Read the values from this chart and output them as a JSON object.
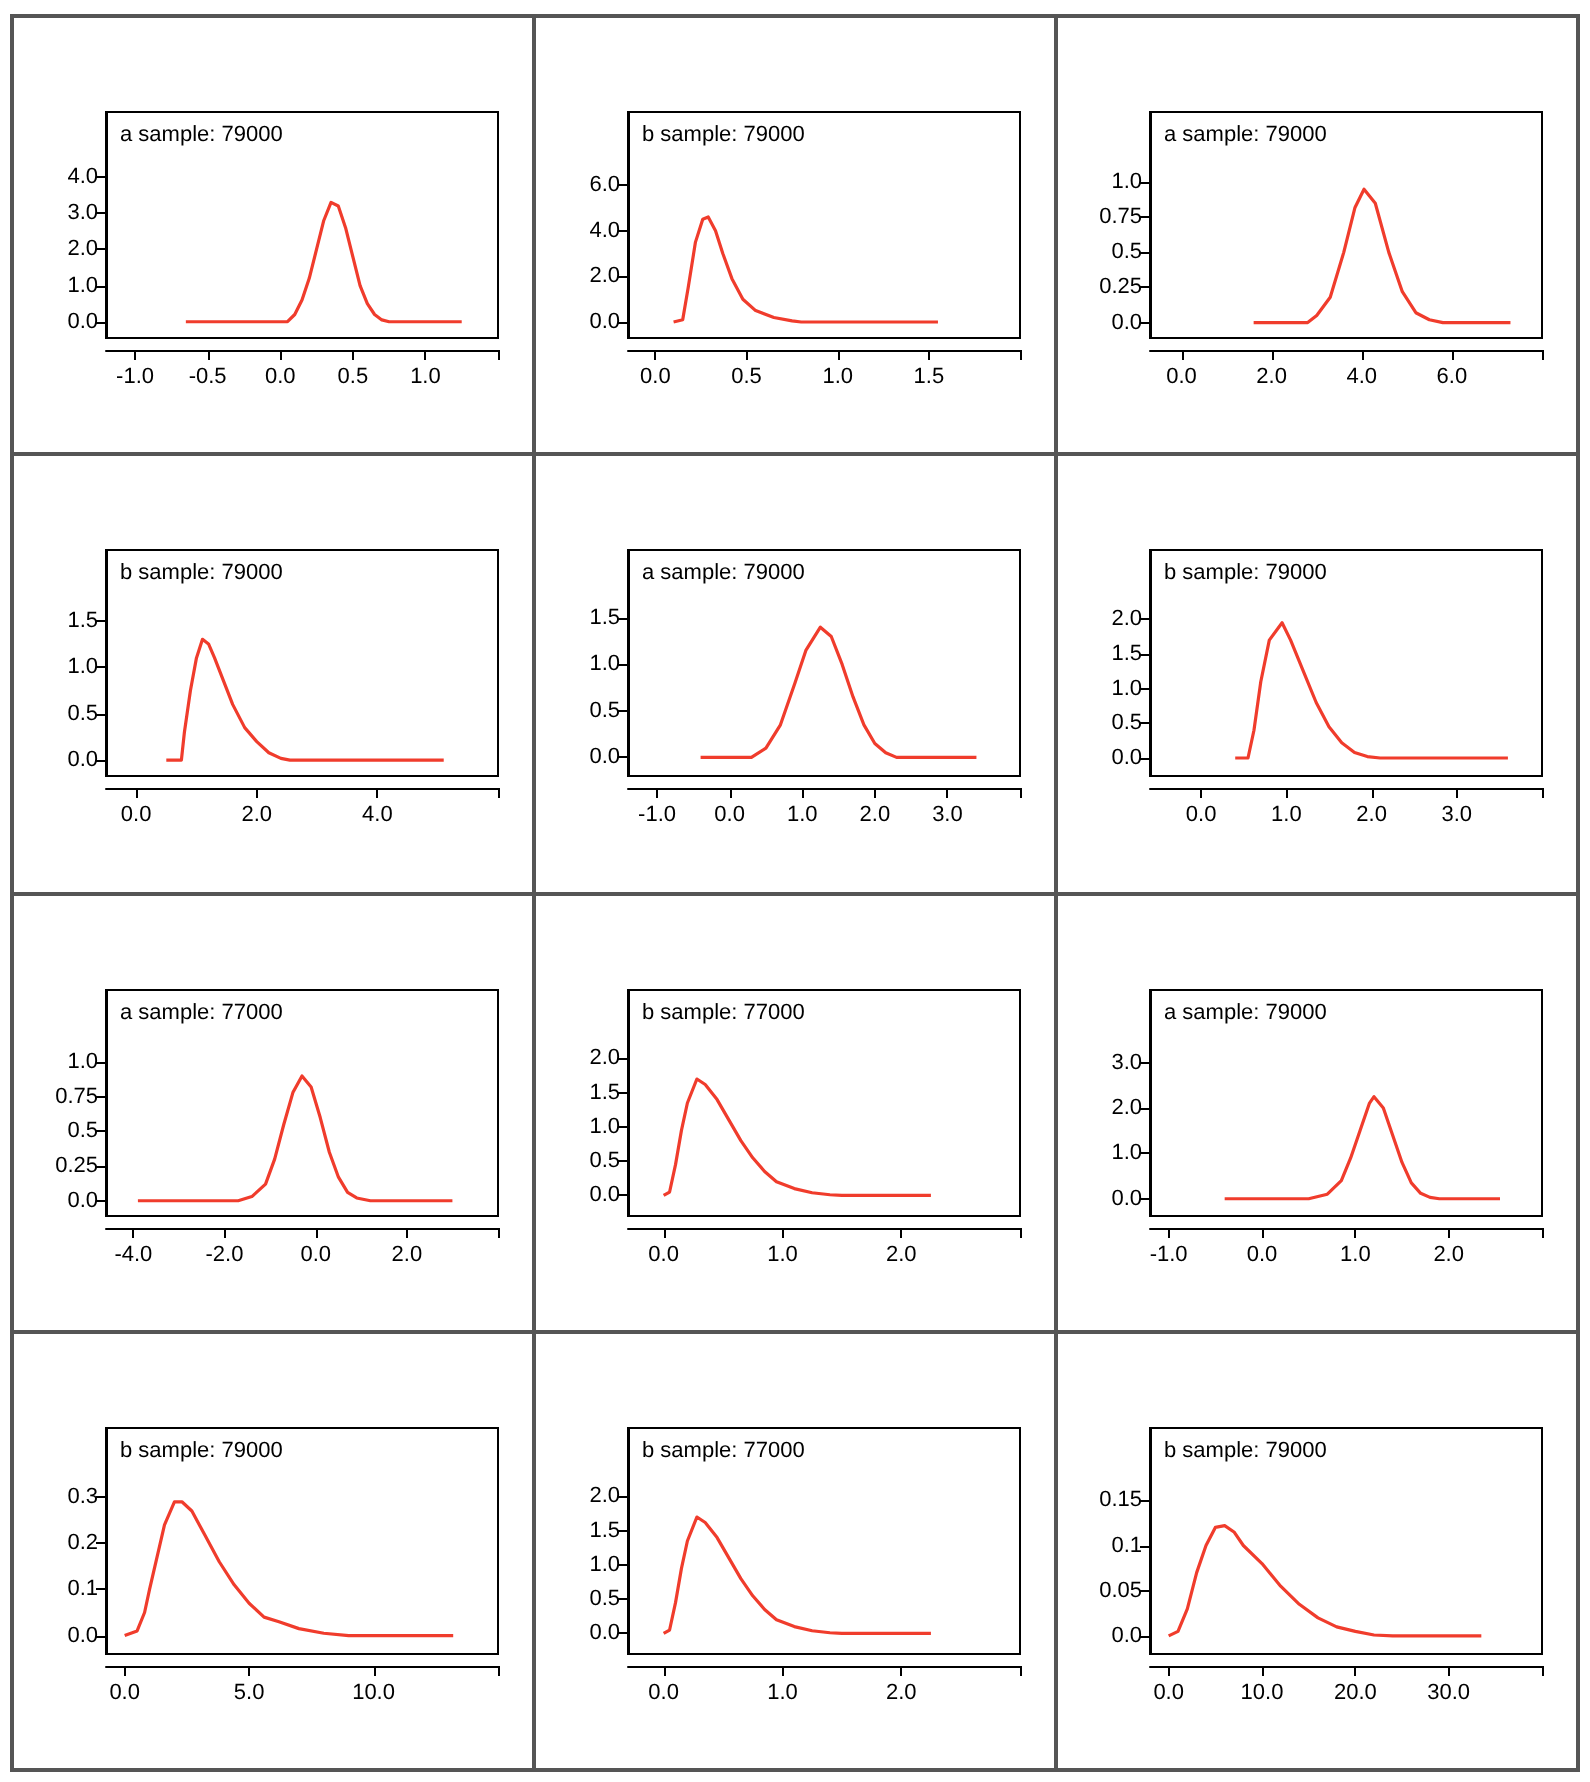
{
  "chart_data": [
    {
      "type": "line",
      "title": "a sample: 79000",
      "color": "#f03c2c",
      "xlim": [
        -1.2,
        1.5
      ],
      "ylim": [
        -0.45,
        5.8
      ],
      "xticks": [
        {
          "value": -1,
          "label": "-1.0"
        },
        {
          "value": -0.5,
          "label": "-0.5"
        },
        {
          "value": 0,
          "label": "0.0"
        },
        {
          "value": 0.5,
          "label": "0.5"
        },
        {
          "value": 1,
          "label": "1.0"
        },
        {
          "value": 1.5,
          "label": null
        }
      ],
      "yticks": [
        {
          "value": 0,
          "label": "0.0"
        },
        {
          "value": 1,
          "label": "1.0"
        },
        {
          "value": 2,
          "label": "2.0"
        },
        {
          "value": 3,
          "label": "3.0"
        },
        {
          "value": 4,
          "label": "4.0"
        }
      ],
      "x": [
        -0.65,
        0.05,
        0.1,
        0.15,
        0.2,
        0.25,
        0.3,
        0.35,
        0.4,
        0.45,
        0.5,
        0.55,
        0.6,
        0.65,
        0.7,
        0.75,
        1.25
      ],
      "values": [
        0,
        0,
        0.2,
        0.6,
        1.2,
        2.0,
        2.8,
        3.3,
        3.2,
        2.6,
        1.8,
        1.0,
        0.5,
        0.2,
        0.05,
        0,
        0
      ]
    },
    {
      "type": "line",
      "title": "b sample: 79000",
      "color": "#f03c2c",
      "xlim": [
        -0.15,
        2.0
      ],
      "ylim": [
        -0.7,
        9.2
      ],
      "xticks": [
        {
          "value": 0,
          "label": "0.0"
        },
        {
          "value": 0.5,
          "label": "0.5"
        },
        {
          "value": 1,
          "label": "1.0"
        },
        {
          "value": 1.5,
          "label": "1.5"
        },
        {
          "value": 2,
          "label": null
        }
      ],
      "yticks": [
        {
          "value": 0,
          "label": "0.0"
        },
        {
          "value": 2,
          "label": "2.0"
        },
        {
          "value": 4,
          "label": "4.0"
        },
        {
          "value": 6,
          "label": "6.0"
        }
      ],
      "x": [
        0.1,
        0.15,
        0.18,
        0.22,
        0.26,
        0.29,
        0.33,
        0.37,
        0.42,
        0.48,
        0.55,
        0.65,
        0.75,
        0.8,
        1.55
      ],
      "values": [
        0,
        0.1,
        1.5,
        3.5,
        4.5,
        4.6,
        4.0,
        3.0,
        1.9,
        1.0,
        0.5,
        0.2,
        0.05,
        0,
        0
      ]
    },
    {
      "type": "line",
      "title": "a sample: 79000",
      "color": "#f03c2c",
      "xlim": [
        -0.7,
        8.0
      ],
      "ylim": [
        -0.11,
        1.5
      ],
      "xticks": [
        {
          "value": 0,
          "label": "0.0"
        },
        {
          "value": 2,
          "label": "2.0"
        },
        {
          "value": 4,
          "label": "4.0"
        },
        {
          "value": 6,
          "label": "6.0"
        },
        {
          "value": 8,
          "label": null
        }
      ],
      "yticks": [
        {
          "value": 0,
          "label": "0.0"
        },
        {
          "value": 0.25,
          "label": "0.25"
        },
        {
          "value": 0.5,
          "label": "0.5"
        },
        {
          "value": 0.75,
          "label": "0.75"
        },
        {
          "value": 1,
          "label": "1.0"
        }
      ],
      "x": [
        1.6,
        2.8,
        3.0,
        3.3,
        3.6,
        3.85,
        4.05,
        4.3,
        4.6,
        4.9,
        5.2,
        5.5,
        5.8,
        7.3
      ],
      "values": [
        0,
        0,
        0.05,
        0.18,
        0.5,
        0.82,
        0.95,
        0.85,
        0.5,
        0.22,
        0.07,
        0.02,
        0,
        0
      ]
    },
    {
      "type": "line",
      "title": "b sample: 79000",
      "color": "#f03c2c",
      "xlim": [
        -0.5,
        6.0
      ],
      "ylim": [
        -0.17,
        2.26
      ],
      "xticks": [
        {
          "value": 0,
          "label": "0.0"
        },
        {
          "value": 2,
          "label": "2.0"
        },
        {
          "value": 4,
          "label": "4.0"
        },
        {
          "value": 6,
          "label": null
        }
      ],
      "yticks": [
        {
          "value": 0,
          "label": "0.0"
        },
        {
          "value": 0.5,
          "label": "0.5"
        },
        {
          "value": 1,
          "label": "1.0"
        },
        {
          "value": 1.5,
          "label": "1.5"
        }
      ],
      "x": [
        0.5,
        0.75,
        0.8,
        0.9,
        1.0,
        1.1,
        1.2,
        1.3,
        1.45,
        1.6,
        1.8,
        2.0,
        2.2,
        2.4,
        2.55,
        5.1
      ],
      "values": [
        0,
        0,
        0.3,
        0.75,
        1.1,
        1.3,
        1.25,
        1.1,
        0.85,
        0.6,
        0.35,
        0.2,
        0.08,
        0.02,
        0,
        0
      ]
    },
    {
      "type": "line",
      "title": "a sample: 79000",
      "color": "#f03c2c",
      "xlim": [
        -1.4,
        4.0
      ],
      "ylim": [
        -0.2,
        2.23
      ],
      "xticks": [
        {
          "value": -1,
          "label": "-1.0"
        },
        {
          "value": 0,
          "label": "0.0"
        },
        {
          "value": 1,
          "label": "1.0"
        },
        {
          "value": 2,
          "label": "2.0"
        },
        {
          "value": 3,
          "label": "3.0"
        },
        {
          "value": 4,
          "label": null
        }
      ],
      "yticks": [
        {
          "value": 0,
          "label": "0.0"
        },
        {
          "value": 0.5,
          "label": "0.5"
        },
        {
          "value": 1,
          "label": "1.0"
        },
        {
          "value": 1.5,
          "label": "1.5"
        }
      ],
      "x": [
        -0.4,
        0.3,
        0.5,
        0.7,
        0.9,
        1.05,
        1.25,
        1.4,
        1.55,
        1.7,
        1.85,
        2.0,
        2.15,
        2.3,
        3.4
      ],
      "values": [
        0,
        0,
        0.1,
        0.35,
        0.8,
        1.15,
        1.4,
        1.3,
        1.0,
        0.65,
        0.35,
        0.15,
        0.05,
        0,
        0
      ]
    },
    {
      "type": "line",
      "title": "b sample: 79000",
      "color": "#f03c2c",
      "xlim": [
        -0.6,
        4.0
      ],
      "ylim": [
        -0.26,
        3.0
      ],
      "xticks": [
        {
          "value": 0,
          "label": "0.0"
        },
        {
          "value": 1,
          "label": "1.0"
        },
        {
          "value": 2,
          "label": "2.0"
        },
        {
          "value": 3,
          "label": "3.0"
        },
        {
          "value": 4,
          "label": null
        }
      ],
      "yticks": [
        {
          "value": 0,
          "label": "0.0"
        },
        {
          "value": 0.5,
          "label": "0.5"
        },
        {
          "value": 1,
          "label": "1.0"
        },
        {
          "value": 1.5,
          "label": "1.5"
        },
        {
          "value": 2,
          "label": "2.0"
        }
      ],
      "x": [
        0.4,
        0.55,
        0.62,
        0.7,
        0.8,
        0.95,
        1.05,
        1.2,
        1.35,
        1.5,
        1.65,
        1.8,
        1.95,
        2.1,
        3.6
      ],
      "values": [
        0,
        0,
        0.4,
        1.1,
        1.7,
        1.95,
        1.7,
        1.25,
        0.8,
        0.45,
        0.22,
        0.08,
        0.02,
        0,
        0
      ]
    },
    {
      "type": "line",
      "title": "a sample: 77000",
      "color": "#f03c2c",
      "xlim": [
        -4.6,
        4.0
      ],
      "ylim": [
        -0.11,
        1.52
      ],
      "xticks": [
        {
          "value": -4,
          "label": "-4.0"
        },
        {
          "value": -2,
          "label": "-2.0"
        },
        {
          "value": 0,
          "label": "0.0"
        },
        {
          "value": 2,
          "label": "2.0"
        },
        {
          "value": 4,
          "label": null
        }
      ],
      "yticks": [
        {
          "value": 0,
          "label": "0.0"
        },
        {
          "value": 0.25,
          "label": "0.25"
        },
        {
          "value": 0.5,
          "label": "0.5"
        },
        {
          "value": 0.75,
          "label": "0.75"
        },
        {
          "value": 1,
          "label": "1.0"
        }
      ],
      "x": [
        -3.9,
        -1.7,
        -1.4,
        -1.1,
        -0.9,
        -0.7,
        -0.5,
        -0.3,
        -0.1,
        0.1,
        0.3,
        0.5,
        0.7,
        0.9,
        1.2,
        3.0
      ],
      "values": [
        0,
        0,
        0.03,
        0.12,
        0.3,
        0.55,
        0.78,
        0.9,
        0.82,
        0.6,
        0.35,
        0.17,
        0.06,
        0.02,
        0,
        0
      ]
    },
    {
      "type": "line",
      "title": "b sample: 77000",
      "color": "#f03c2c",
      "xlim": [
        -0.3,
        3.0
      ],
      "ylim": [
        -0.3,
        3.0
      ],
      "xticks": [
        {
          "value": 0,
          "label": "0.0"
        },
        {
          "value": 1,
          "label": "1.0"
        },
        {
          "value": 2,
          "label": "2.0"
        },
        {
          "value": 3,
          "label": null
        }
      ],
      "yticks": [
        {
          "value": 0,
          "label": "0.0"
        },
        {
          "value": 0.5,
          "label": "0.5"
        },
        {
          "value": 1,
          "label": "1.0"
        },
        {
          "value": 1.5,
          "label": "1.5"
        },
        {
          "value": 2,
          "label": "2.0"
        }
      ],
      "x": [
        0,
        0.05,
        0.1,
        0.15,
        0.2,
        0.28,
        0.35,
        0.45,
        0.55,
        0.65,
        0.75,
        0.85,
        0.95,
        1.1,
        1.25,
        1.4,
        1.5,
        2.25
      ],
      "values": [
        0,
        0.05,
        0.45,
        0.95,
        1.35,
        1.7,
        1.62,
        1.4,
        1.1,
        0.8,
        0.55,
        0.35,
        0.2,
        0.1,
        0.04,
        0.01,
        0,
        0
      ]
    },
    {
      "type": "line",
      "title": "a sample: 79000",
      "color": "#f03c2c",
      "xlim": [
        -1.2,
        3.0
      ],
      "ylim": [
        -0.38,
        4.6
      ],
      "xticks": [
        {
          "value": -1,
          "label": "-1.0"
        },
        {
          "value": 0,
          "label": "0.0"
        },
        {
          "value": 1,
          "label": "1.0"
        },
        {
          "value": 2,
          "label": "2.0"
        },
        {
          "value": 3,
          "label": null
        }
      ],
      "yticks": [
        {
          "value": 0,
          "label": "0.0"
        },
        {
          "value": 1,
          "label": "1.0"
        },
        {
          "value": 2,
          "label": "2.0"
        },
        {
          "value": 3,
          "label": "3.0"
        }
      ],
      "x": [
        -0.4,
        0.5,
        0.7,
        0.85,
        0.95,
        1.05,
        1.15,
        1.2,
        1.3,
        1.4,
        1.5,
        1.6,
        1.7,
        1.8,
        1.9,
        2.55
      ],
      "values": [
        0,
        0,
        0.1,
        0.4,
        0.9,
        1.5,
        2.1,
        2.25,
        2.0,
        1.4,
        0.8,
        0.35,
        0.12,
        0.03,
        0,
        0
      ]
    },
    {
      "type": "line",
      "title": "b sample: 79000",
      "color": "#f03c2c",
      "xlim": [
        -0.75,
        15
      ],
      "ylim": [
        -0.04,
        0.45
      ],
      "xticks": [
        {
          "value": 0,
          "label": "0.0"
        },
        {
          "value": 5,
          "label": "5.0"
        },
        {
          "value": 10,
          "label": "10.0"
        },
        {
          "value": 15,
          "label": null
        }
      ],
      "yticks": [
        {
          "value": 0,
          "label": "0.0"
        },
        {
          "value": 0.1,
          "label": "0.1"
        },
        {
          "value": 0.2,
          "label": "0.2"
        },
        {
          "value": 0.3,
          "label": "0.3"
        }
      ],
      "x": [
        0,
        0.5,
        0.8,
        1.0,
        1.3,
        1.6,
        2.0,
        2.3,
        2.7,
        3.2,
        3.8,
        4.4,
        5.0,
        5.6,
        6.2,
        7.0,
        8.0,
        9.0,
        13.2
      ],
      "values": [
        0,
        0.01,
        0.05,
        0.1,
        0.17,
        0.24,
        0.29,
        0.29,
        0.27,
        0.22,
        0.16,
        0.11,
        0.07,
        0.04,
        0.03,
        0.015,
        0.005,
        0,
        0
      ]
    },
    {
      "type": "line",
      "title": "b sample: 77000",
      "color": "#f03c2c",
      "xlim": [
        -0.3,
        3.0
      ],
      "ylim": [
        -0.3,
        3.0
      ],
      "xticks": [
        {
          "value": 0,
          "label": "0.0"
        },
        {
          "value": 1,
          "label": "1.0"
        },
        {
          "value": 2,
          "label": "2.0"
        },
        {
          "value": 3,
          "label": null
        }
      ],
      "yticks": [
        {
          "value": 0,
          "label": "0.0"
        },
        {
          "value": 0.5,
          "label": "0.5"
        },
        {
          "value": 1,
          "label": "1.0"
        },
        {
          "value": 1.5,
          "label": "1.5"
        },
        {
          "value": 2,
          "label": "2.0"
        }
      ],
      "x": [
        0,
        0.05,
        0.1,
        0.15,
        0.2,
        0.28,
        0.35,
        0.45,
        0.55,
        0.65,
        0.75,
        0.85,
        0.95,
        1.1,
        1.25,
        1.4,
        1.5,
        2.25
      ],
      "values": [
        0,
        0.05,
        0.45,
        0.95,
        1.35,
        1.7,
        1.62,
        1.4,
        1.1,
        0.8,
        0.55,
        0.35,
        0.2,
        0.1,
        0.04,
        0.01,
        0,
        0
      ]
    },
    {
      "type": "line",
      "title": "b sample: 79000",
      "color": "#f03c2c",
      "xlim": [
        -2,
        40
      ],
      "ylim": [
        -0.02,
        0.23
      ],
      "xticks": [
        {
          "value": 0,
          "label": "0.0"
        },
        {
          "value": 10,
          "label": "10.0"
        },
        {
          "value": 20,
          "label": "20.0"
        },
        {
          "value": 30,
          "label": "30.0"
        },
        {
          "value": 40,
          "label": null
        }
      ],
      "yticks": [
        {
          "value": 0,
          "label": "0.0"
        },
        {
          "value": 0.05,
          "label": "0.05"
        },
        {
          "value": 0.1,
          "label": "0.1"
        },
        {
          "value": 0.15,
          "label": "0.15"
        }
      ],
      "x": [
        0,
        1,
        2,
        3,
        4,
        5,
        6,
        7,
        8,
        10,
        12,
        14,
        16,
        18,
        20,
        22,
        24,
        33.5
      ],
      "values": [
        0,
        0.005,
        0.03,
        0.07,
        0.1,
        0.12,
        0.122,
        0.115,
        0.1,
        0.08,
        0.055,
        0.035,
        0.02,
        0.01,
        0.005,
        0.001,
        0,
        0
      ]
    }
  ]
}
